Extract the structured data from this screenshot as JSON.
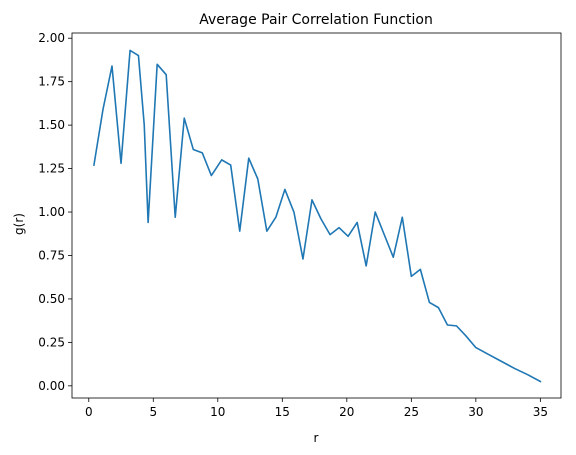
{
  "chart_data": {
    "type": "line",
    "title": "Average Pair Correlation Function",
    "xlabel": "r",
    "ylabel": "g(r)",
    "xlim": [
      -1.3,
      36.6
    ],
    "ylim": [
      -0.07,
      2.03
    ],
    "xticks": [
      0,
      5,
      10,
      15,
      20,
      25,
      30,
      35
    ],
    "xtick_labels": [
      "0",
      "5",
      "10",
      "15",
      "20",
      "25",
      "30",
      "35"
    ],
    "yticks": [
      0.0,
      0.25,
      0.5,
      0.75,
      1.0,
      1.25,
      1.5,
      1.75,
      2.0
    ],
    "ytick_labels": [
      "0.00",
      "0.25",
      "0.50",
      "0.75",
      "1.00",
      "1.25",
      "1.50",
      "1.75",
      "2.00"
    ],
    "grid": false,
    "series": [
      {
        "color": "#1f77b4",
        "x": [
          0.4,
          1.1,
          1.8,
          2.5,
          3.2,
          3.85,
          4.3,
          4.6,
          5.3,
          6.0,
          6.7,
          7.4,
          8.1,
          8.8,
          9.5,
          10.3,
          11.0,
          11.7,
          12.4,
          13.1,
          13.8,
          14.5,
          15.2,
          15.9,
          16.6,
          17.3,
          18.0,
          18.7,
          19.4,
          20.1,
          20.8,
          21.5,
          22.2,
          22.9,
          23.6,
          24.3,
          25.0,
          25.7,
          26.4,
          27.1,
          27.8,
          28.5,
          29.2,
          30.0,
          31.0,
          32.0,
          33.0,
          34.0,
          35.0
        ],
        "values": [
          1.27,
          1.59,
          1.84,
          1.28,
          1.93,
          1.9,
          1.5,
          0.94,
          1.85,
          1.79,
          0.97,
          1.54,
          1.36,
          1.34,
          1.21,
          1.3,
          1.27,
          0.89,
          1.31,
          1.19,
          0.89,
          0.97,
          1.13,
          1.0,
          0.73,
          1.07,
          0.96,
          0.87,
          0.91,
          0.86,
          0.94,
          0.69,
          1.0,
          0.87,
          0.74,
          0.97,
          0.63,
          0.67,
          0.48,
          0.45,
          0.35,
          0.345,
          0.29,
          0.22,
          0.18,
          0.14,
          0.1,
          0.065,
          0.025
        ]
      }
    ]
  }
}
